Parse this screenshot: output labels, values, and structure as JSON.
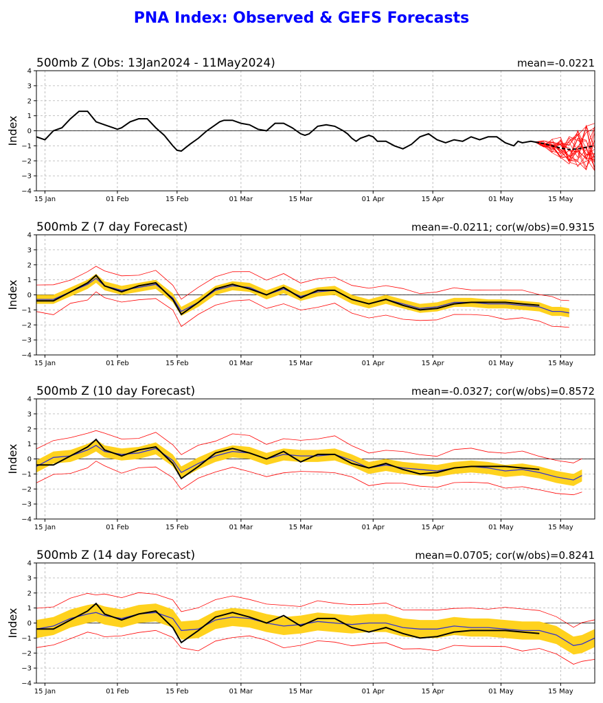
{
  "page_title": "PNA Index: Observed & GEFS Forecasts",
  "colors": {
    "title": "#0000ff",
    "observed": "#000000",
    "ens_mean": "#3333cc",
    "spread_band": "#ffd21e",
    "ens_min_max": "#ff0000",
    "grid": "#b0b0b0"
  },
  "chart_data": [
    {
      "type": "line",
      "title": "500mb Z (Obs: 13Jan2024 - 11May2024)",
      "stat": "mean=-0.0221",
      "ylabel": "Index",
      "ylim": [
        -4,
        4
      ],
      "yticks": [
        -4,
        -3,
        -2,
        -1,
        0,
        1,
        2,
        3,
        4
      ],
      "x_ticks": [
        "15 Jan",
        "01 Feb",
        "15 Feb",
        "01 Mar",
        "15 Mar",
        "01 Apr",
        "15 Apr",
        "01 May",
        "15 May"
      ],
      "x_tick_days": [
        2,
        19,
        33,
        48,
        62,
        79,
        93,
        109,
        123
      ],
      "x_range_days": [
        0,
        131
      ],
      "grid": true,
      "observed": {
        "x": [
          0,
          2,
          4,
          6,
          8,
          10,
          12,
          14,
          16,
          18,
          19,
          20,
          22,
          24,
          26,
          28,
          30,
          32,
          33,
          34,
          36,
          38,
          40,
          42,
          43,
          44,
          46,
          48,
          50,
          52,
          54,
          56,
          58,
          60,
          62,
          63,
          64,
          66,
          68,
          70,
          72,
          73,
          74,
          75,
          76,
          78,
          79,
          80,
          82,
          84,
          86,
          88,
          90,
          92,
          94,
          96,
          98,
          100,
          102,
          104,
          106,
          108,
          110,
          112,
          113,
          114,
          116,
          118
        ],
        "y": [
          -0.4,
          -0.6,
          0.0,
          0.2,
          0.8,
          1.3,
          1.3,
          0.6,
          0.4,
          0.2,
          0.1,
          0.2,
          0.6,
          0.8,
          0.8,
          0.2,
          -0.3,
          -1.0,
          -1.3,
          -1.35,
          -0.9,
          -0.5,
          0.0,
          0.4,
          0.6,
          0.7,
          0.7,
          0.5,
          0.4,
          0.1,
          0.0,
          0.5,
          0.5,
          0.2,
          -0.2,
          -0.3,
          -0.2,
          0.3,
          0.4,
          0.3,
          0.0,
          -0.2,
          -0.5,
          -0.7,
          -0.5,
          -0.3,
          -0.4,
          -0.7,
          -0.7,
          -1.0,
          -1.2,
          -0.9,
          -0.4,
          -0.2,
          -0.6,
          -0.8,
          -0.6,
          -0.7,
          -0.4,
          -0.6,
          -0.4,
          -0.4,
          -0.8,
          -1.0,
          -0.7,
          -0.8,
          -0.7,
          -0.8
        ]
      },
      "forecast_mean": {
        "x": [
          117,
          119,
          121,
          123,
          125,
          127,
          129,
          131
        ],
        "y": [
          -0.75,
          -0.85,
          -1.0,
          -1.15,
          -1.25,
          -1.2,
          -1.1,
          -1.0
        ]
      },
      "ensemble_members_visible": true
    },
    {
      "type": "line",
      "title": "500mb Z (7 day Forecast)",
      "stat": "mean=-0.0211; cor(w/obs)=0.9315",
      "ylabel": "Index",
      "ylim": [
        -4,
        4
      ],
      "yticks": [
        -4,
        -3,
        -2,
        -1,
        0,
        1,
        2,
        3,
        4
      ],
      "x_ticks": [
        "15 Jan",
        "01 Feb",
        "15 Feb",
        "01 Mar",
        "15 Mar",
        "01 Apr",
        "15 Apr",
        "01 May",
        "15 May"
      ],
      "x_tick_days": [
        2,
        19,
        33,
        48,
        62,
        79,
        93,
        109,
        123
      ],
      "x_range_days": [
        0,
        131
      ],
      "grid": true,
      "x": [
        0,
        4,
        8,
        12,
        14,
        16,
        20,
        24,
        28,
        32,
        34,
        38,
        42,
        46,
        50,
        54,
        58,
        62,
        66,
        70,
        74,
        78,
        82,
        86,
        90,
        94,
        98,
        102,
        106,
        110,
        114,
        118,
        121,
        123,
        125
      ],
      "observed": [
        -0.4,
        -0.4,
        0.2,
        0.8,
        1.3,
        0.6,
        0.2,
        0.6,
        0.8,
        -0.3,
        -1.3,
        -0.5,
        0.4,
        0.7,
        0.4,
        0.0,
        0.5,
        -0.2,
        0.3,
        0.3,
        -0.3,
        -0.6,
        -0.3,
        -0.7,
        -1.0,
        -0.9,
        -0.6,
        -0.5,
        -0.5,
        -0.5,
        -0.6,
        -0.7,
        null,
        null,
        null
      ],
      "ens_mean": [
        -0.3,
        -0.3,
        0.2,
        0.7,
        1.1,
        0.6,
        0.3,
        0.5,
        0.7,
        -0.2,
        -1.1,
        -0.5,
        0.3,
        0.6,
        0.5,
        0.0,
        0.4,
        -0.1,
        0.2,
        0.3,
        -0.3,
        -0.6,
        -0.3,
        -0.6,
        -0.9,
        -0.8,
        -0.5,
        -0.5,
        -0.6,
        -0.6,
        -0.7,
        -0.8,
        -1.1,
        -1.1,
        -1.2
      ],
      "band_half_width": 0.3,
      "envelope_half_width": 0.9
    },
    {
      "type": "line",
      "title": "500mb Z (10 day Forecast)",
      "stat": "mean=-0.0327; cor(w/obs)=0.8572",
      "ylabel": "Index",
      "ylim": [
        -4,
        4
      ],
      "yticks": [
        -4,
        -3,
        -2,
        -1,
        0,
        1,
        2,
        3,
        4
      ],
      "x_ticks": [
        "15 Jan",
        "01 Feb",
        "15 Feb",
        "01 Mar",
        "15 Mar",
        "01 Apr",
        "15 Apr",
        "01 May",
        "15 May"
      ],
      "x_tick_days": [
        2,
        19,
        33,
        48,
        62,
        79,
        93,
        109,
        123
      ],
      "x_range_days": [
        0,
        131
      ],
      "grid": true,
      "x": [
        0,
        4,
        8,
        12,
        14,
        16,
        20,
        24,
        28,
        32,
        34,
        38,
        42,
        46,
        50,
        54,
        58,
        62,
        66,
        70,
        74,
        78,
        82,
        86,
        90,
        94,
        98,
        102,
        106,
        110,
        114,
        118,
        122,
        126,
        128
      ],
      "observed": [
        -0.4,
        -0.4,
        0.2,
        0.8,
        1.3,
        0.6,
        0.2,
        0.6,
        0.8,
        -0.3,
        -1.3,
        -0.5,
        0.4,
        0.7,
        0.4,
        0.0,
        0.5,
        -0.2,
        0.3,
        0.3,
        -0.3,
        -0.6,
        -0.3,
        -0.7,
        -1.0,
        -0.9,
        -0.6,
        -0.5,
        -0.5,
        -0.5,
        -0.6,
        -0.7,
        null,
        null,
        null
      ],
      "ens_mean": [
        -0.5,
        0.1,
        0.2,
        0.6,
        0.9,
        0.5,
        0.3,
        0.4,
        0.7,
        -0.1,
        -0.9,
        -0.3,
        0.2,
        0.5,
        0.4,
        0.0,
        0.3,
        0.2,
        0.2,
        0.3,
        -0.1,
        -0.6,
        -0.4,
        -0.6,
        -0.7,
        -0.8,
        -0.6,
        -0.5,
        -0.6,
        -0.8,
        -0.7,
        -0.9,
        -1.2,
        -1.4,
        -1.1
      ],
      "band_half_width": 0.4,
      "envelope_half_width": 1.1
    },
    {
      "type": "line",
      "title": "500mb Z (14 day Forecast)",
      "stat": "mean=0.0705; cor(w/obs)=0.8241",
      "ylabel": "Index",
      "ylim": [
        -4,
        4
      ],
      "yticks": [
        -4,
        -3,
        -2,
        -1,
        0,
        1,
        2,
        3,
        4
      ],
      "x_ticks": [
        "15 Jan",
        "01 Feb",
        "15 Feb",
        "01 Mar",
        "15 Mar",
        "01 Apr",
        "15 Apr",
        "01 May",
        "15 May"
      ],
      "x_tick_days": [
        2,
        19,
        33,
        48,
        62,
        79,
        93,
        109,
        123
      ],
      "x_range_days": [
        0,
        131
      ],
      "grid": true,
      "x": [
        0,
        4,
        8,
        12,
        14,
        16,
        20,
        24,
        28,
        32,
        34,
        38,
        42,
        46,
        50,
        54,
        58,
        62,
        66,
        70,
        74,
        78,
        82,
        86,
        90,
        94,
        98,
        102,
        106,
        110,
        114,
        118,
        122,
        126,
        128,
        131
      ],
      "observed": [
        -0.4,
        -0.4,
        0.2,
        0.8,
        1.3,
        0.6,
        0.2,
        0.6,
        0.8,
        -0.3,
        -1.3,
        -0.5,
        0.4,
        0.7,
        0.4,
        0.0,
        0.5,
        -0.2,
        0.3,
        0.3,
        -0.3,
        -0.6,
        -0.3,
        -0.7,
        -1.0,
        -0.9,
        -0.6,
        -0.5,
        -0.5,
        -0.5,
        -0.6,
        -0.7,
        null,
        null,
        null,
        null
      ],
      "ens_mean": [
        -0.4,
        -0.2,
        0.3,
        0.6,
        0.7,
        0.5,
        0.3,
        0.6,
        0.7,
        0.3,
        -0.5,
        -0.4,
        0.2,
        0.4,
        0.3,
        0.0,
        -0.2,
        -0.1,
        0.1,
        0.0,
        -0.1,
        0.0,
        0.0,
        -0.3,
        -0.4,
        -0.4,
        -0.2,
        -0.3,
        -0.3,
        -0.4,
        -0.5,
        -0.5,
        -0.8,
        -1.5,
        -1.4,
        -1.0
      ],
      "band_half_width": 0.6,
      "envelope_half_width": 1.3
    }
  ]
}
